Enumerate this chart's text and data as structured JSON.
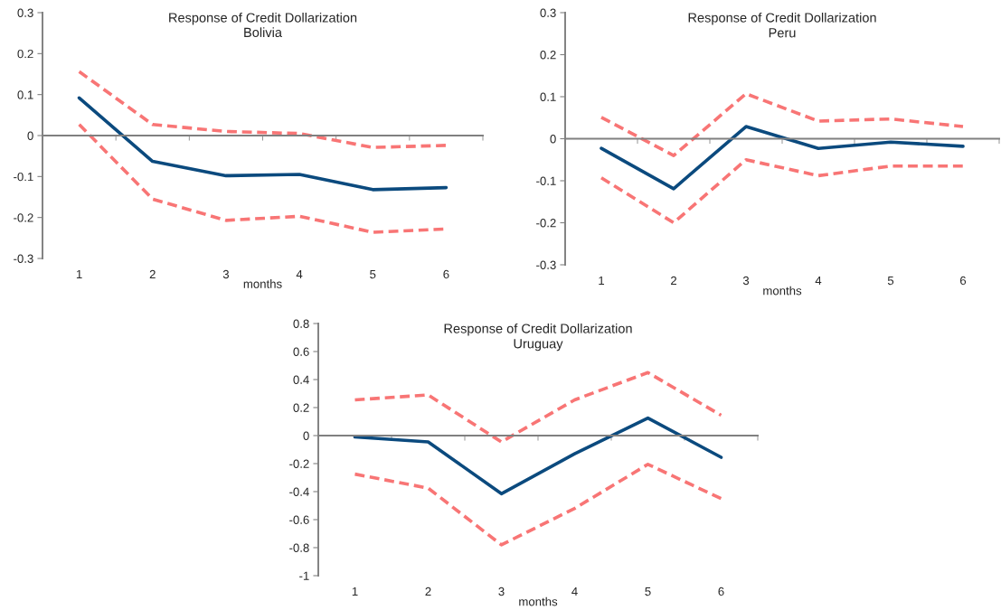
{
  "chart_data": [
    {
      "type": "line",
      "title": "Response of Credit Dollarization",
      "subtitle": "Bolivia",
      "xlabel": "months",
      "categories": [
        "1",
        "2",
        "3",
        "4",
        "5",
        "6"
      ],
      "ylim": [
        -0.3,
        0.3
      ],
      "yticks": [
        -0.3,
        -0.2,
        -0.1,
        0,
        0.1,
        0.2,
        0.3
      ],
      "series": [
        {
          "color": "#f87575",
          "line_style": "dashed",
          "values": [
            0.156,
            0.027,
            0.01,
            0.005,
            -0.029,
            -0.024
          ]
        },
        {
          "color": "#f87575",
          "line_style": "dashed",
          "values": [
            0.027,
            -0.155,
            -0.207,
            -0.197,
            -0.236,
            -0.228
          ]
        },
        {
          "color": "#0b4a7e",
          "line_style": "solid",
          "values": [
            0.092,
            -0.063,
            -0.098,
            -0.095,
            -0.132,
            -0.127
          ]
        }
      ]
    },
    {
      "type": "line",
      "title": "Response of Credit Dollarization",
      "subtitle": "Peru",
      "xlabel": "months",
      "categories": [
        "1",
        "2",
        "3",
        "4",
        "5",
        "6"
      ],
      "ylim": [
        -0.3,
        0.3
      ],
      "yticks": [
        -0.3,
        -0.2,
        -0.1,
        0,
        0.1,
        0.2,
        0.3
      ],
      "series": [
        {
          "color": "#f87575",
          "line_style": "dashed",
          "values": [
            0.051,
            -0.04,
            0.107,
            0.042,
            0.047,
            0.029
          ]
        },
        {
          "color": "#f87575",
          "line_style": "dashed",
          "values": [
            -0.093,
            -0.2,
            -0.05,
            -0.088,
            -0.065,
            -0.065
          ]
        },
        {
          "color": "#0b4a7e",
          "line_style": "solid",
          "values": [
            -0.023,
            -0.119,
            0.029,
            -0.023,
            -0.008,
            -0.018
          ]
        }
      ]
    },
    {
      "type": "line",
      "title": "Response of Credit Dollarization",
      "subtitle": "Uruguay",
      "xlabel": "months",
      "categories": [
        "1",
        "2",
        "3",
        "4",
        "5",
        "6"
      ],
      "ylim": [
        -1,
        0.8
      ],
      "yticks": [
        -1,
        -0.8,
        -0.6,
        -0.4,
        -0.2,
        0,
        0.2,
        0.4,
        0.6,
        0.8
      ],
      "series": [
        {
          "color": "#f87575",
          "line_style": "dashed",
          "values": [
            0.255,
            0.29,
            -0.045,
            0.255,
            0.45,
            0.145
          ]
        },
        {
          "color": "#f87575",
          "line_style": "dashed",
          "values": [
            -0.275,
            -0.375,
            -0.78,
            -0.52,
            -0.205,
            -0.45
          ]
        },
        {
          "color": "#0b4a7e",
          "line_style": "solid",
          "values": [
            -0.01,
            -0.045,
            -0.415,
            -0.13,
            0.125,
            -0.155
          ]
        }
      ]
    }
  ]
}
